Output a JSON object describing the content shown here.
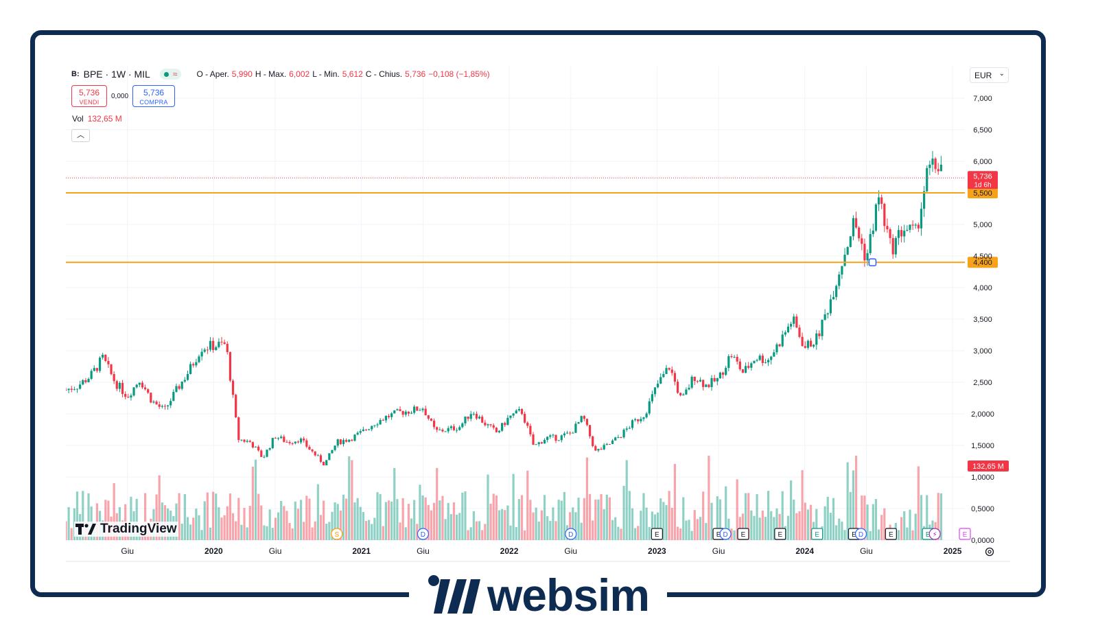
{
  "header": {
    "symbol_badge": "B:",
    "symbol_line": "BPE · 1W · MIL",
    "ohlc": [
      {
        "k": "O - Aper.",
        "v": "5,990"
      },
      {
        "k": "H - Max.",
        "v": "6,002"
      },
      {
        "k": "L - Min.",
        "v": "5,612"
      },
      {
        "k": "C - Chius.",
        "v": "5,736"
      }
    ],
    "change": "−0,108 (−1,85%)"
  },
  "trade": {
    "sell_price": "5,736",
    "sell_label": "VENDI",
    "spread": "0,000",
    "buy_price": "5,736",
    "buy_label": "COMPRA"
  },
  "volume": {
    "label": "Vol",
    "value": "132,65 M"
  },
  "currency": "EUR",
  "price_badge": {
    "price": "5,736",
    "countdown": "1d 6h"
  },
  "volume_badge": "132,65 M",
  "logo_text": "TradingView",
  "brand_text": "websim",
  "colors": {
    "up": "#089981",
    "down": "#f23645",
    "level": "#f7a21b",
    "frame": "#0e2b52"
  },
  "chart_data": {
    "type": "candlestick",
    "y_axis": {
      "ticks": [
        "7,000",
        "6,500",
        "6,000",
        "5,000",
        "4,500",
        "4,000",
        "3,500",
        "3,000",
        "2,500",
        "2,0000",
        "1,5000",
        "1,0000",
        "0,5000",
        "0,0000"
      ],
      "tick_values": [
        7.0,
        6.5,
        6.0,
        5.0,
        4.5,
        4.0,
        3.5,
        3.0,
        2.5,
        2.0,
        1.5,
        1.0,
        0.5,
        0.0
      ],
      "range": [
        0.0,
        7.0
      ]
    },
    "x_axis": {
      "labels": [
        {
          "text": "Giu",
          "date": "2019-06"
        },
        {
          "text": "2020",
          "date": "2020-01"
        },
        {
          "text": "Giu",
          "date": "2020-06"
        },
        {
          "text": "2021",
          "date": "2021-01"
        },
        {
          "text": "Giu",
          "date": "2021-06"
        },
        {
          "text": "2022",
          "date": "2022-01"
        },
        {
          "text": "Giu",
          "date": "2022-06"
        },
        {
          "text": "2023",
          "date": "2023-01"
        },
        {
          "text": "Giu",
          "date": "2023-06"
        },
        {
          "text": "2024",
          "date": "2024-01"
        },
        {
          "text": "Giu",
          "date": "2024-06"
        },
        {
          "text": "2025",
          "date": "2025-01"
        }
      ],
      "range": [
        "2019-01",
        "2025-02"
      ]
    },
    "horizontal_levels": [
      {
        "price": 5.5,
        "label": "5,500"
      },
      {
        "price": 4.4,
        "label": "4,400"
      }
    ],
    "last_price": 5.736,
    "price_path": [
      [
        "2019-01",
        2.38
      ],
      [
        "2019-02",
        2.45
      ],
      [
        "2019-03",
        2.6
      ],
      [
        "2019-04",
        2.88
      ],
      [
        "2019-05",
        2.5
      ],
      [
        "2019-06",
        2.28
      ],
      [
        "2019-07",
        2.55
      ],
      [
        "2019-08",
        2.2
      ],
      [
        "2019-09",
        2.05
      ],
      [
        "2019-10",
        2.38
      ],
      [
        "2019-11",
        2.68
      ],
      [
        "2019-12",
        3.05
      ],
      [
        "2020-01",
        3.08
      ],
      [
        "2020-02",
        3.1
      ],
      [
        "2020-03",
        1.6
      ],
      [
        "2020-04",
        1.55
      ],
      [
        "2020-05",
        1.3
      ],
      [
        "2020-06",
        1.65
      ],
      [
        "2020-07",
        1.55
      ],
      [
        "2020-08",
        1.6
      ],
      [
        "2020-09",
        1.4
      ],
      [
        "2020-10",
        1.2
      ],
      [
        "2020-11",
        1.55
      ],
      [
        "2020-12",
        1.6
      ],
      [
        "2021-01",
        1.7
      ],
      [
        "2021-02",
        1.85
      ],
      [
        "2021-03",
        1.95
      ],
      [
        "2021-04",
        2.02
      ],
      [
        "2021-05",
        2.05
      ],
      [
        "2021-06",
        2.1
      ],
      [
        "2021-07",
        1.72
      ],
      [
        "2021-08",
        1.75
      ],
      [
        "2021-09",
        1.8
      ],
      [
        "2021-10",
        2.05
      ],
      [
        "2021-11",
        1.85
      ],
      [
        "2021-12",
        1.7
      ],
      [
        "2022-01",
        1.95
      ],
      [
        "2022-02",
        2.05
      ],
      [
        "2022-03",
        1.48
      ],
      [
        "2022-04",
        1.62
      ],
      [
        "2022-05",
        1.62
      ],
      [
        "2022-06",
        1.7
      ],
      [
        "2022-07",
        1.95
      ],
      [
        "2022-08",
        1.4
      ],
      [
        "2022-09",
        1.5
      ],
      [
        "2022-10",
        1.65
      ],
      [
        "2022-11",
        1.85
      ],
      [
        "2022-12",
        2.0
      ],
      [
        "2023-01",
        2.45
      ],
      [
        "2023-02",
        2.75
      ],
      [
        "2023-03",
        2.2
      ],
      [
        "2023-04",
        2.6
      ],
      [
        "2023-05",
        2.45
      ],
      [
        "2023-06",
        2.55
      ],
      [
        "2023-07",
        2.95
      ],
      [
        "2023-08",
        2.65
      ],
      [
        "2023-09",
        2.9
      ],
      [
        "2023-10",
        2.85
      ],
      [
        "2023-11",
        3.15
      ],
      [
        "2023-12",
        3.5
      ],
      [
        "2024-01",
        3.05
      ],
      [
        "2024-02",
        3.2
      ],
      [
        "2024-03",
        3.75
      ],
      [
        "2024-04",
        4.4
      ],
      [
        "2024-05",
        5.05
      ],
      [
        "2024-06",
        4.45
      ],
      [
        "2024-07",
        5.45
      ],
      [
        "2024-08",
        4.6
      ],
      [
        "2024-09",
        4.95
      ],
      [
        "2024-10",
        4.85
      ],
      [
        "2024-11",
        5.85
      ],
      [
        "2024-12",
        5.95
      ],
      [
        "2025-01",
        5.736
      ]
    ],
    "volume_max_label": "132,65 M",
    "event_markers": [
      {
        "letter": "S",
        "date": "2020-11",
        "color": "#ff9800"
      },
      {
        "letter": "D",
        "date": "2021-06",
        "color": "#2962ff"
      },
      {
        "letter": "D",
        "date": "2022-06",
        "color": "#2962ff"
      },
      {
        "letter": "E",
        "date": "2023-01",
        "color": "#131722"
      },
      {
        "letter": "E",
        "date": "2023-06",
        "color": "#131722"
      },
      {
        "letter": "D",
        "date": "2023-06",
        "color": "#2962ff"
      },
      {
        "letter": "E",
        "date": "2023-08",
        "color": "#131722"
      },
      {
        "letter": "E",
        "date": "2023-11",
        "color": "#131722"
      },
      {
        "letter": "E",
        "date": "2024-02",
        "color": "#089981"
      },
      {
        "letter": "E",
        "date": "2024-05",
        "color": "#131722"
      },
      {
        "letter": "D",
        "date": "2024-05",
        "color": "#2962ff"
      },
      {
        "letter": "E",
        "date": "2024-08",
        "color": "#131722"
      },
      {
        "letter": "E",
        "date": "2024-11",
        "color": "#089981"
      },
      {
        "letter": "⚡",
        "date": "2024-11",
        "color": "#9c27b0"
      },
      {
        "letter": "E",
        "date": "2025-02",
        "color": "#e040fb"
      }
    ]
  }
}
